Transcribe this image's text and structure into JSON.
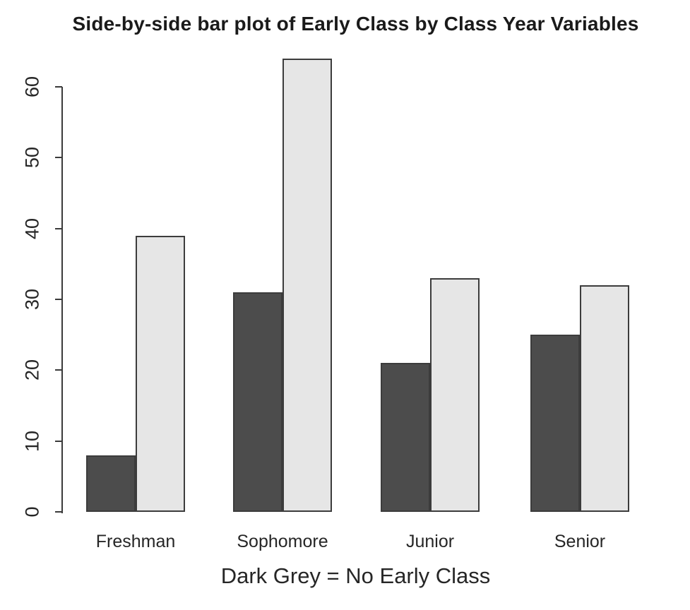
{
  "chart_data": {
    "type": "bar",
    "title": "Side-by-side bar plot of Early Class by Class Year Variables",
    "xlabel": "Dark Grey = No Early Class",
    "ylabel": "",
    "categories": [
      "Freshman",
      "Sophomore",
      "Junior",
      "Senior"
    ],
    "series": [
      {
        "name": "No Early Class",
        "color": "#4c4c4c",
        "values": [
          8,
          31,
          21,
          25
        ]
      },
      {
        "name": "Early Class",
        "color": "#e6e6e6",
        "values": [
          39,
          64,
          33,
          32
        ]
      }
    ],
    "ylim": [
      0,
      60
    ],
    "yticks": [
      0,
      10,
      20,
      30,
      40,
      50,
      60
    ],
    "bar_border_color": "#3c3c3c",
    "axis_color": "#3a3a3a",
    "background": "#ffffff",
    "grid": false,
    "legend_position": "none"
  }
}
